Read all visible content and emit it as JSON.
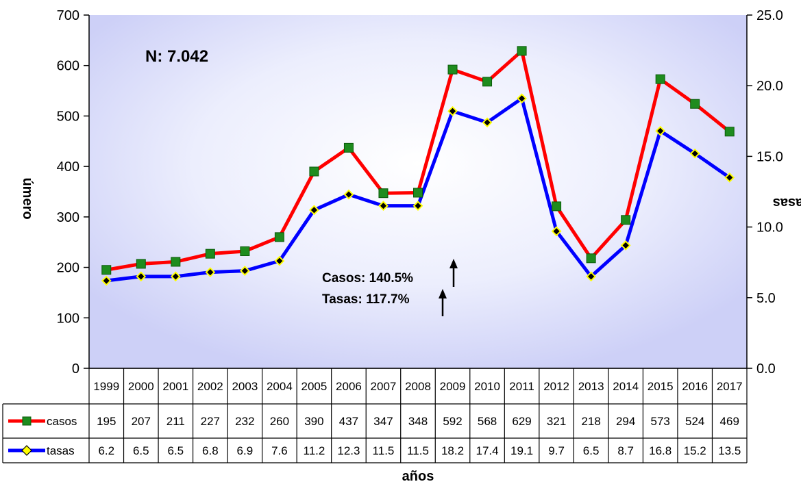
{
  "chart_data": {
    "type": "line",
    "x": [
      "1999",
      "2000",
      "2001",
      "2002",
      "2003",
      "2004",
      "2005",
      "2006",
      "2007",
      "2008",
      "2009",
      "2010",
      "2011",
      "2012",
      "2013",
      "2014",
      "2015",
      "2016",
      "2017"
    ],
    "series": [
      {
        "name": "casos",
        "axis": "left",
        "color": "#ff0000",
        "marker": "square",
        "marker_color": "#1e8c1e",
        "values": [
          195,
          207,
          211,
          227,
          232,
          260,
          390,
          437,
          347,
          348,
          592,
          568,
          629,
          321,
          218,
          294,
          573,
          524,
          469
        ]
      },
      {
        "name": "tasas",
        "axis": "right",
        "color": "#0000ff",
        "marker": "diamond",
        "marker_color": "#ffff00",
        "values": [
          6.2,
          6.5,
          6.5,
          6.8,
          6.9,
          7.6,
          11.2,
          12.3,
          11.5,
          11.5,
          18.2,
          17.4,
          19.1,
          9.7,
          6.5,
          8.7,
          16.8,
          15.2,
          13.5
        ]
      }
    ],
    "y_left": {
      "min": 0,
      "max": 700,
      "step": 100,
      "ticks": [
        "0",
        "100",
        "200",
        "300",
        "400",
        "500",
        "600",
        "700"
      ],
      "label": "úmero"
    },
    "y_right": {
      "min": 0,
      "max": 25,
      "step": 5,
      "ticks": [
        "0.0",
        "5.0",
        "10.0",
        "15.0",
        "20.0",
        "25.0"
      ],
      "label": "asas"
    },
    "xlabel": "años",
    "annotations": {
      "n": "N: 7.042",
      "casos": "Casos: 140.5%",
      "tasas": "Tasas: 117.7%"
    },
    "table": {
      "rows": [
        {
          "name": "casos",
          "cells": [
            "195",
            "207",
            "211",
            "227",
            "232",
            "260",
            "390",
            "437",
            "347",
            "348",
            "592",
            "568",
            "629",
            "321",
            "218",
            "294",
            "573",
            "524",
            "469"
          ]
        },
        {
          "name": "tasas",
          "cells": [
            "6.2",
            "6.5",
            "6.5",
            "6.8",
            "6.9",
            "7.6",
            "11.2",
            "12.3",
            "11.5",
            "11.5",
            "18.2",
            "17.4",
            "19.1",
            "9.7",
            "6.5",
            "8.7",
            "16.8",
            "15.2",
            "13.5"
          ]
        }
      ]
    },
    "grid": false,
    "legend": "table"
  }
}
